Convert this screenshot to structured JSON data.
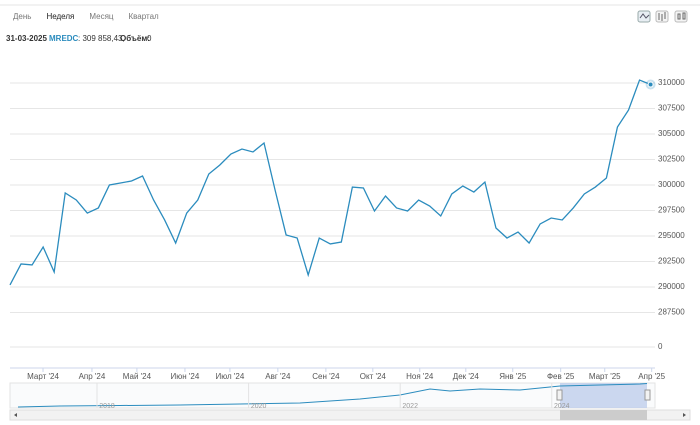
{
  "tabs": {
    "items": [
      "День",
      "Неделя",
      "Месяц",
      "Квартал"
    ],
    "active": 1
  },
  "header": {
    "date": "31-03-2025",
    "value_text": ": 309 858,43,",
    "volume_label": "Объём:",
    "volume": 0
  },
  "chart_data": {
    "type": "line",
    "categories": [
      null,
      null,
      null,
      null,
      null,
      null,
      null,
      null,
      null,
      null,
      null,
      null,
      null,
      null,
      null,
      null,
      null,
      null,
      null,
      null,
      null,
      null,
      null,
      null,
      null,
      null,
      null,
      null,
      null,
      null,
      null,
      null,
      null,
      null,
      null,
      null,
      null,
      null,
      null,
      null,
      null,
      null,
      null,
      null,
      null,
      null,
      null,
      null,
      null,
      null,
      null,
      null,
      null,
      null,
      null,
      null,
      null,
      null,
      null
    ],
    "series": [
      {
        "name": "MREDC",
        "color": "#2b8cbe",
        "values": [
          290200,
          292260,
          292160,
          293920,
          291470,
          299220,
          298530,
          297250,
          297750,
          300000,
          300200,
          300390,
          300880,
          298530,
          296570,
          294310,
          297250,
          298530,
          301080,
          301960,
          303040,
          303530,
          303240,
          304120,
          299510,
          295100,
          294800,
          291180,
          294800,
          294220,
          294410,
          299800,
          299710,
          297450,
          298920,
          297750,
          297450,
          298530,
          297940,
          296960,
          299120,
          299900,
          299310,
          300290,
          295780,
          294800,
          295390,
          294310,
          296180,
          296760,
          296570,
          297750,
          299120,
          299800,
          300690,
          305690,
          307350,
          310290,
          309858.43
        ]
      }
    ],
    "ylim": [
      286270,
      312750
    ],
    "yticks": [
      287500,
      290000,
      292500,
      295000,
      297500,
      300000,
      302500,
      305000,
      307500,
      310000
    ],
    "xlim": [
      0,
      58.4
    ],
    "xticks": [
      {
        "value": 2.99,
        "label": "Март '24"
      },
      {
        "value": 7.42,
        "label": "Апр '24"
      },
      {
        "value": 11.49,
        "label": "Май '24"
      },
      {
        "value": 15.84,
        "label": "Июн '24"
      },
      {
        "value": 19.91,
        "label": "Июл '24"
      },
      {
        "value": 24.25,
        "label": "Авг '24"
      },
      {
        "value": 28.6,
        "label": "Сен '24"
      },
      {
        "value": 32.85,
        "label": "Окт '24"
      },
      {
        "value": 37.1,
        "label": "Ноя '24"
      },
      {
        "value": 41.27,
        "label": "Дек '24"
      },
      {
        "value": 45.52,
        "label": "Янв '25"
      },
      {
        "value": 49.86,
        "label": "Фев '25"
      },
      {
        "value": 53.85,
        "label": "Март '25"
      },
      {
        "value": 58.1,
        "label": "Апр '25"
      }
    ],
    "grid": true,
    "volume_yticks": [
      0
    ],
    "navigator_xlim": [
      2016.72,
      2025.23
    ],
    "navigator_xticks": [
      2018,
      2020,
      2022,
      2024
    ]
  }
}
